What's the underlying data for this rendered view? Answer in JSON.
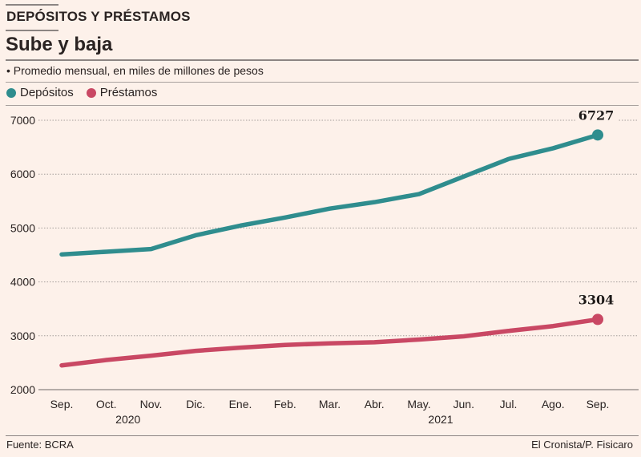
{
  "header": {
    "kicker": "DEPÓSITOS Y PRÉSTAMOS",
    "title": "Sube y baja",
    "subtitle": "• Promedio mensual, en miles de millones de pesos"
  },
  "legend": [
    {
      "label": "Depósitos",
      "color": "#2f8d8e"
    },
    {
      "label": "Préstamos",
      "color": "#c94864"
    }
  ],
  "footer": {
    "source": "Fuente: BCRA",
    "credit": "El Cronista/P. Fisicaro"
  },
  "chart_data": {
    "type": "line",
    "title": "Sube y baja",
    "subtitle": "Promedio mensual, en miles de millones de pesos",
    "xlabel": "",
    "ylabel": "",
    "categories": [
      "Sep.",
      "Oct.",
      "Nov.",
      "Dic.",
      "Ene.",
      "Feb.",
      "Mar.",
      "Abr.",
      "May.",
      "Jun.",
      "Jul.",
      "Ago.",
      "Sep."
    ],
    "year_labels": [
      {
        "label": "2020",
        "under": "Oct."
      },
      {
        "label": "2021",
        "under": "May."
      }
    ],
    "yticks": [
      2000,
      3000,
      4000,
      5000,
      6000,
      7000
    ],
    "ylim": [
      2000,
      7000
    ],
    "grid": true,
    "legend_position": "top-left",
    "series": [
      {
        "name": "Depósitos",
        "color": "#2f8d8e",
        "values": [
          4510,
          4560,
          4610,
          4865,
          5045,
          5195,
          5360,
          5480,
          5630,
          5955,
          6280,
          6480,
          6727
        ],
        "end_label": "6727"
      },
      {
        "name": "Préstamos",
        "color": "#c94864",
        "values": [
          2450,
          2550,
          2630,
          2720,
          2780,
          2830,
          2860,
          2880,
          2930,
          2990,
          3090,
          3180,
          3304
        ],
        "end_label": "3304"
      }
    ]
  }
}
